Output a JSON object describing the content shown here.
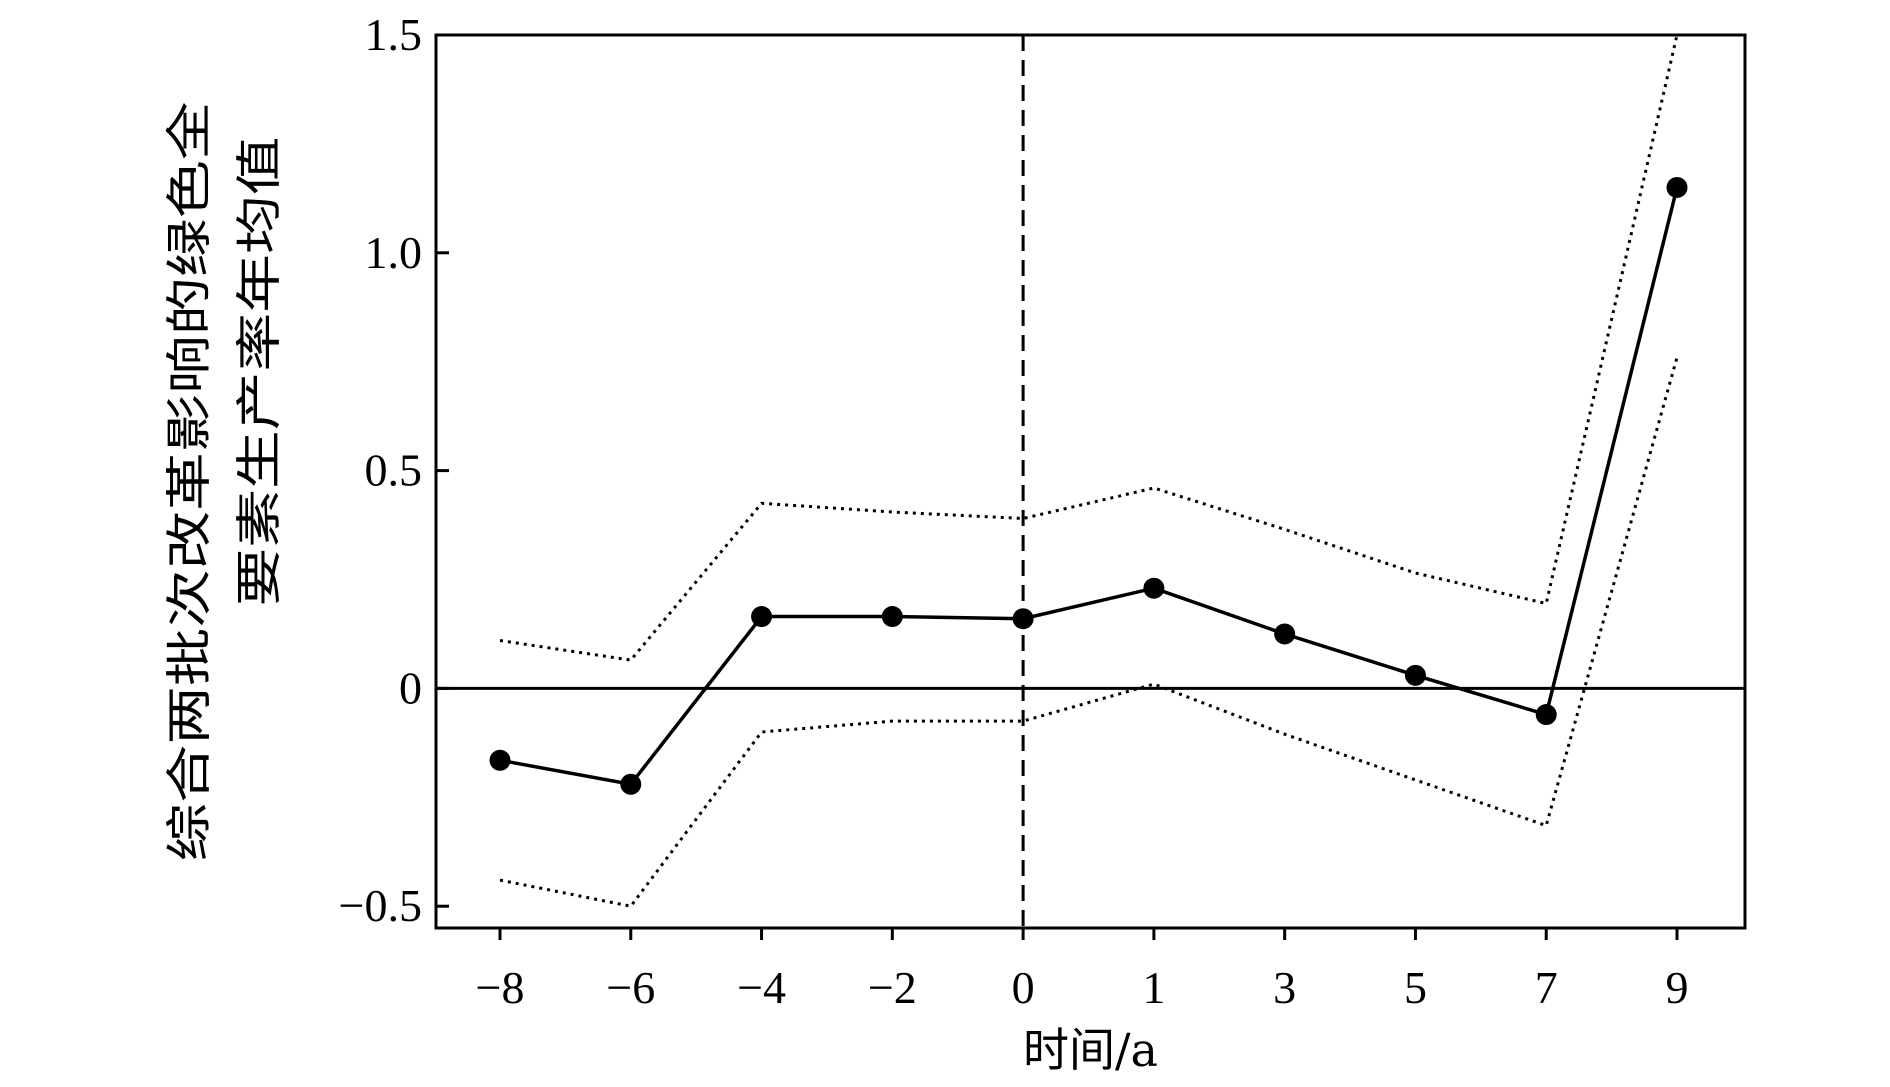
{
  "chart_data": {
    "type": "line",
    "title": "",
    "xlabel": "时间/a",
    "ylabel_lines": [
      "综合两批次改革影响的绿色全",
      "要素生产率年均值"
    ],
    "categories": [
      "−8",
      "−6",
      "−4",
      "−2",
      "0",
      "1",
      "3",
      "5",
      "7",
      "9"
    ],
    "ylim": [
      -0.55,
      1.5
    ],
    "yticks": [
      -0.5,
      0,
      0.5,
      1.0,
      1.5
    ],
    "ytick_labels": [
      "−0.5",
      "0",
      "0.5",
      "1.0",
      "1.5"
    ],
    "reference_lines": {
      "horizontal_y": 0,
      "vertical_at_category": "0"
    },
    "series": [
      {
        "role": "estimate",
        "style": "solid-with-markers",
        "values": [
          -0.165,
          -0.22,
          0.165,
          0.165,
          0.16,
          0.23,
          0.125,
          0.03,
          -0.06,
          1.15
        ]
      },
      {
        "role": "upper-bound",
        "style": "dotted",
        "values": [
          0.11,
          0.065,
          0.425,
          0.405,
          0.39,
          0.46,
          0.365,
          0.265,
          0.195,
          1.5
        ]
      },
      {
        "role": "lower-bound",
        "style": "dotted",
        "values": [
          -0.44,
          -0.5,
          -0.1,
          -0.075,
          -0.075,
          0.01,
          -0.105,
          -0.21,
          -0.315,
          0.76
        ]
      }
    ],
    "grid": false,
    "legend": "none"
  }
}
